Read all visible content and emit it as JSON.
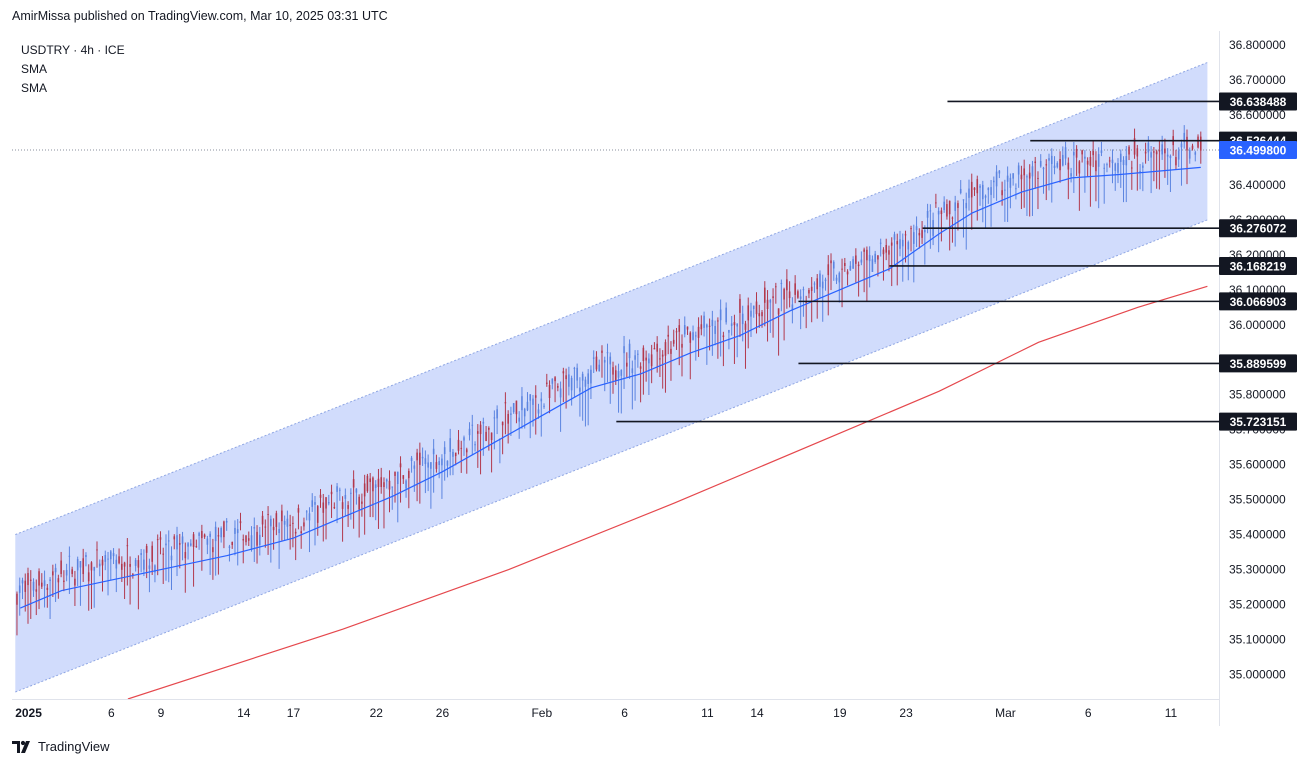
{
  "header": {
    "publisher_line": "AmirMissa published on TradingView.com, Mar 10, 2025 03:31 UTC"
  },
  "legend": {
    "symbol": "USDTRY · 4h · ICE",
    "indicators": [
      "SMA",
      "SMA"
    ]
  },
  "footer": {
    "brand": "TradingView"
  },
  "colors": {
    "channel_fill": "#c9d6fb",
    "channel_edge": "#8fa6e3",
    "bull": "#5b84e0",
    "bear": "#b2384c",
    "sma_fast": "#2962ff",
    "sma_slow": "#e5484d",
    "level": "#131722",
    "current_price": "#2962ff"
  },
  "chart_data": {
    "type": "candlestick",
    "symbol": "USDTRY",
    "timeframe": "4h",
    "y_axis": {
      "ylim": [
        34.93,
        36.84
      ],
      "ticks": [
        "36.800000",
        "36.700000",
        "36.600000",
        "36.500000",
        "36.400000",
        "36.300000",
        "36.200000",
        "36.100000",
        "36.000000",
        "35.900000",
        "35.800000",
        "35.700000",
        "35.600000",
        "35.500000",
        "35.400000",
        "35.300000",
        "35.200000",
        "35.100000",
        "35.000000"
      ]
    },
    "x_axis": {
      "range_days": [
        0,
        72.9
      ],
      "ticks": [
        {
          "label": "2025",
          "day": 1,
          "bold": true
        },
        {
          "label": "6",
          "day": 6
        },
        {
          "label": "9",
          "day": 9
        },
        {
          "label": "14",
          "day": 14
        },
        {
          "label": "17",
          "day": 17
        },
        {
          "label": "22",
          "day": 22
        },
        {
          "label": "26",
          "day": 26
        },
        {
          "label": "Feb",
          "day": 32
        },
        {
          "label": "6",
          "day": 37
        },
        {
          "label": "11",
          "day": 42
        },
        {
          "label": "14",
          "day": 45
        },
        {
          "label": "19",
          "day": 50
        },
        {
          "label": "23",
          "day": 54
        },
        {
          "label": "Mar",
          "day": 60
        },
        {
          "label": "6",
          "day": 65
        },
        {
          "label": "11",
          "day": 70
        }
      ]
    },
    "current_price": {
      "value": 36.4998,
      "label": "36.499800"
    },
    "levels": [
      {
        "value": 36.638488,
        "label": "36.638488",
        "from_day": 56.5
      },
      {
        "value": 36.526444,
        "label": "36.526444",
        "from_day": 61.5
      },
      {
        "value": 36.276072,
        "label": "36.276072",
        "from_day": 55.0
      },
      {
        "value": 36.168219,
        "label": "36.168219",
        "from_day": 53.0
      },
      {
        "value": 36.066903,
        "label": "36.066903",
        "from_day": 47.5
      },
      {
        "value": 35.889599,
        "label": "35.889599",
        "from_day": 47.5
      },
      {
        "value": 35.723151,
        "label": "35.723151",
        "from_day": 36.5
      }
    ],
    "channel": {
      "upper": [
        {
          "day": 0.2,
          "price": 35.4
        },
        {
          "day": 72.2,
          "price": 36.75
        }
      ],
      "lower": [
        {
          "day": 0.2,
          "price": 34.95
        },
        {
          "day": 72.2,
          "price": 36.3
        }
      ]
    },
    "sma_fast": [
      {
        "day": 0.5,
        "price": 35.19
      },
      {
        "day": 3,
        "price": 35.24
      },
      {
        "day": 6,
        "price": 35.27
      },
      {
        "day": 9,
        "price": 35.3
      },
      {
        "day": 13,
        "price": 35.34
      },
      {
        "day": 17,
        "price": 35.39
      },
      {
        "day": 20,
        "price": 35.45
      },
      {
        "day": 23,
        "price": 35.51
      },
      {
        "day": 26,
        "price": 35.58
      },
      {
        "day": 29,
        "price": 35.66
      },
      {
        "day": 32,
        "price": 35.74
      },
      {
        "day": 35,
        "price": 35.82
      },
      {
        "day": 38,
        "price": 35.86
      },
      {
        "day": 41,
        "price": 35.92
      },
      {
        "day": 44,
        "price": 35.97
      },
      {
        "day": 47,
        "price": 36.04
      },
      {
        "day": 50,
        "price": 36.1
      },
      {
        "day": 53,
        "price": 36.16
      },
      {
        "day": 56,
        "price": 36.26
      },
      {
        "day": 58,
        "price": 36.32
      },
      {
        "day": 61,
        "price": 36.38
      },
      {
        "day": 64,
        "price": 36.42
      },
      {
        "day": 67,
        "price": 36.43
      },
      {
        "day": 71.8,
        "price": 36.45
      }
    ],
    "sma_slow": [
      {
        "day": 7,
        "price": 34.93
      },
      {
        "day": 20,
        "price": 35.13
      },
      {
        "day": 30,
        "price": 35.3
      },
      {
        "day": 40,
        "price": 35.49
      },
      {
        "day": 50,
        "price": 35.69
      },
      {
        "day": 56,
        "price": 35.81
      },
      {
        "day": 62,
        "price": 35.95
      },
      {
        "day": 68,
        "price": 36.05
      },
      {
        "day": 72.2,
        "price": 36.11
      }
    ]
  }
}
